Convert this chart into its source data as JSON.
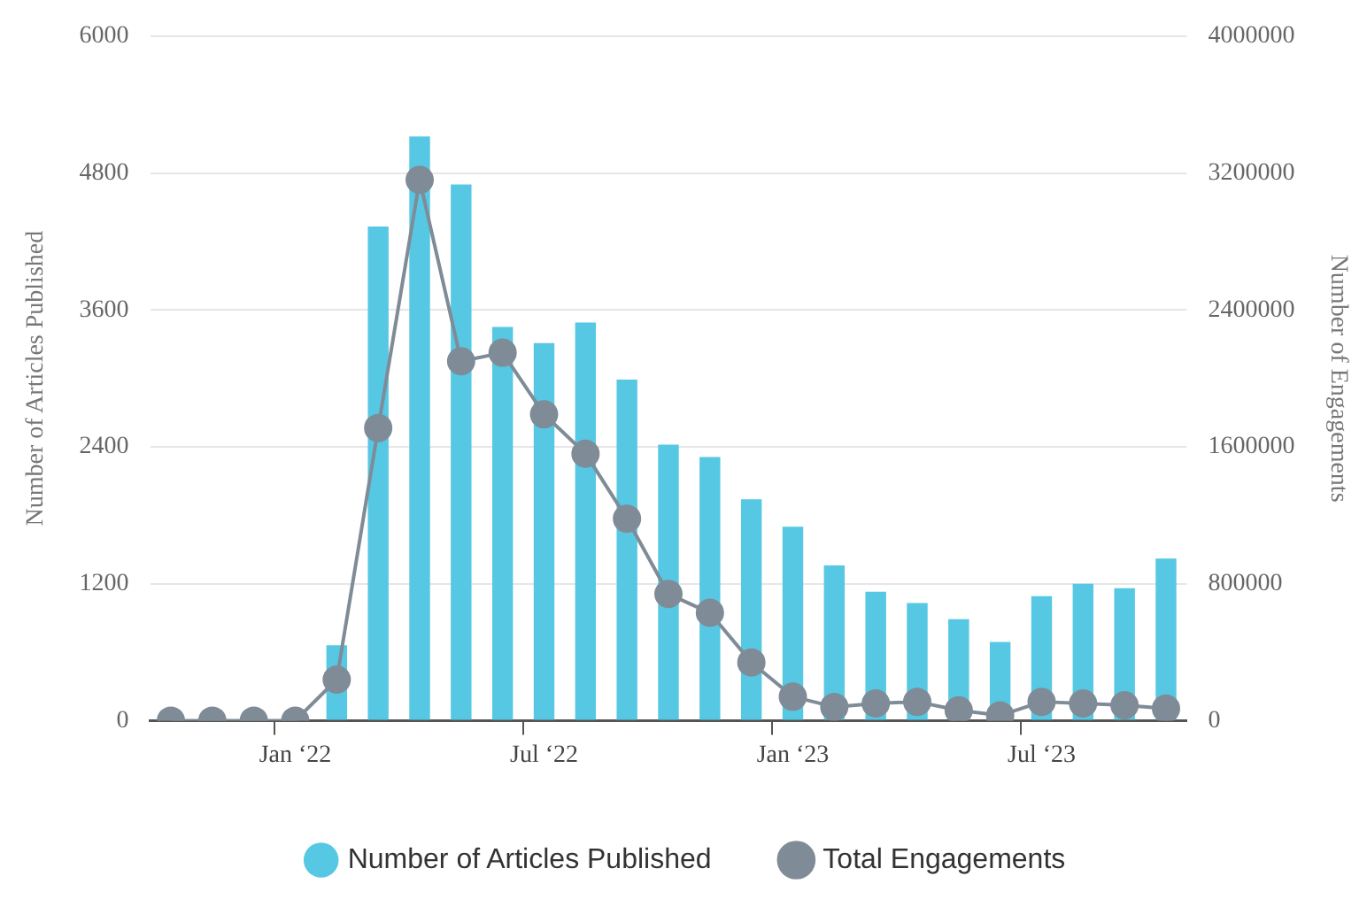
{
  "chart_data": {
    "type": "bar",
    "ylabel": "Number of Articles Published",
    "y2label": "Number of Engagements",
    "categories": [
      null,
      null,
      null,
      "Jan ‘22",
      null,
      null,
      null,
      null,
      null,
      "Jul ‘22",
      null,
      null,
      null,
      null,
      null,
      "Jan ‘23",
      null,
      null,
      null,
      null,
      null,
      "Jul ‘23",
      null,
      null,
      null
    ],
    "series": [
      {
        "name": "Number of Articles Published",
        "color": "#56c8e3",
        "values": [
          0,
          0,
          0,
          0,
          660,
          4330,
          5120,
          4700,
          3450,
          3310,
          3490,
          2990,
          2420,
          2310,
          1940,
          1700,
          1360,
          1130,
          1030,
          890,
          690,
          1090,
          1200,
          1160,
          1420
        ]
      },
      {
        "name": "Total Engagements",
        "type": "line",
        "axis": "y2",
        "color": "#7f8c97",
        "values": [
          0,
          0,
          0,
          0,
          240000,
          1710000,
          3160000,
          2100000,
          2150000,
          1790000,
          1560000,
          1180000,
          740000,
          630000,
          340000,
          140000,
          80000,
          100000,
          110000,
          60000,
          30000,
          110000,
          100000,
          90000,
          70000
        ]
      }
    ],
    "ylim": [
      0,
      6000
    ],
    "yticks": [
      0,
      1200,
      2400,
      3600,
      4800,
      6000
    ],
    "y2lim": [
      0,
      4000000
    ],
    "y2ticks": [
      0,
      800000,
      1600000,
      2400000,
      3200000,
      4000000
    ],
    "grid": "y",
    "legend": "bottom",
    "marker": "circle",
    "line_style": "solid"
  }
}
